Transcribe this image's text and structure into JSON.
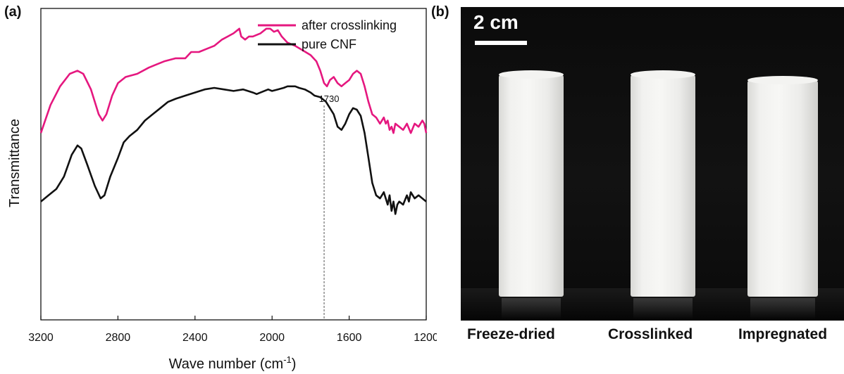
{
  "panel_labels": {
    "a": "(a)",
    "b": "(b)"
  },
  "chart_data": {
    "type": "line",
    "title": "",
    "xlabel": "Wave number (cm-1)",
    "xlabel_base": "Wave number (cm",
    "xlabel_sup": "-1",
    "xlabel_end": ")",
    "ylabel": "Transmittance",
    "xlim": [
      3200,
      1200
    ],
    "x_reversed": true,
    "x_ticks": [
      3200,
      2800,
      2400,
      2000,
      1600,
      1200
    ],
    "ylim": [
      0,
      100
    ],
    "y_ticks_shown": false,
    "grid": false,
    "legend_position": "top-right",
    "annotation": {
      "text": "1730",
      "x": 1730
    },
    "series": [
      {
        "name": "after crosslinking",
        "color": "#e5177f",
        "x": [
          3200,
          3150,
          3100,
          3050,
          3010,
          2980,
          2940,
          2900,
          2880,
          2860,
          2830,
          2800,
          2760,
          2700,
          2640,
          2600,
          2560,
          2500,
          2450,
          2420,
          2380,
          2340,
          2300,
          2260,
          2230,
          2200,
          2170,
          2160,
          2140,
          2120,
          2100,
          2060,
          2030,
          2010,
          1990,
          1970,
          1950,
          1920,
          1880,
          1840,
          1800,
          1770,
          1750,
          1730,
          1715,
          1700,
          1680,
          1660,
          1640,
          1620,
          1600,
          1580,
          1560,
          1540,
          1520,
          1500,
          1480,
          1460,
          1440,
          1420,
          1410,
          1400,
          1390,
          1380,
          1370,
          1360,
          1340,
          1320,
          1300,
          1280,
          1260,
          1240,
          1230,
          1220,
          1210,
          1200
        ],
        "y": [
          60,
          69,
          75,
          79,
          80,
          79,
          74,
          66,
          64,
          66,
          72,
          76,
          78,
          79,
          81,
          82,
          83,
          84,
          84,
          86,
          86,
          87,
          88,
          90,
          91,
          92,
          93.5,
          91,
          90,
          91,
          91,
          92,
          93.5,
          93.5,
          92.5,
          93,
          91,
          89,
          88,
          86.5,
          85,
          83,
          80,
          76,
          75,
          77,
          78,
          76,
          75,
          76,
          77,
          79,
          80,
          79,
          75,
          70,
          66,
          65,
          63,
          65,
          63,
          64,
          61,
          62,
          60,
          63,
          62,
          61,
          63,
          60,
          63,
          62,
          63,
          64,
          63,
          60
        ]
      },
      {
        "name": "pure CNF",
        "color": "#111111",
        "x": [
          3200,
          3160,
          3120,
          3080,
          3040,
          3010,
          2990,
          2960,
          2920,
          2890,
          2870,
          2840,
          2800,
          2770,
          2740,
          2700,
          2660,
          2620,
          2580,
          2540,
          2500,
          2450,
          2400,
          2350,
          2300,
          2250,
          2200,
          2150,
          2100,
          2080,
          2060,
          2020,
          2000,
          1970,
          1940,
          1920,
          1900,
          1880,
          1860,
          1830,
          1800,
          1780,
          1750,
          1720,
          1700,
          1680,
          1660,
          1640,
          1620,
          1600,
          1580,
          1560,
          1540,
          1520,
          1500,
          1480,
          1460,
          1440,
          1420,
          1400,
          1390,
          1380,
          1370,
          1360,
          1350,
          1340,
          1320,
          1300,
          1290,
          1280,
          1260,
          1240,
          1220,
          1200
        ],
        "y": [
          38,
          40,
          42,
          46,
          53,
          56,
          55,
          50,
          43,
          39,
          40,
          46,
          52,
          57,
          59,
          61,
          64,
          66,
          68,
          70,
          71,
          72,
          73,
          74,
          74.5,
          74,
          73.5,
          74,
          73,
          72.5,
          73,
          74,
          73.5,
          74,
          74.5,
          75,
          75,
          75,
          74.5,
          74,
          73,
          72,
          71.5,
          70,
          68,
          66,
          62,
          61,
          63,
          66,
          68,
          67.5,
          65.5,
          60,
          52,
          44,
          40,
          39,
          41,
          37,
          40,
          35,
          38,
          34,
          37,
          38,
          37,
          40,
          38,
          41,
          39,
          40,
          39,
          38
        ]
      }
    ]
  },
  "photo": {
    "scale_label": "2 cm",
    "samples": [
      "Freeze-dried",
      "Crosslinked",
      "Impregnated"
    ]
  }
}
